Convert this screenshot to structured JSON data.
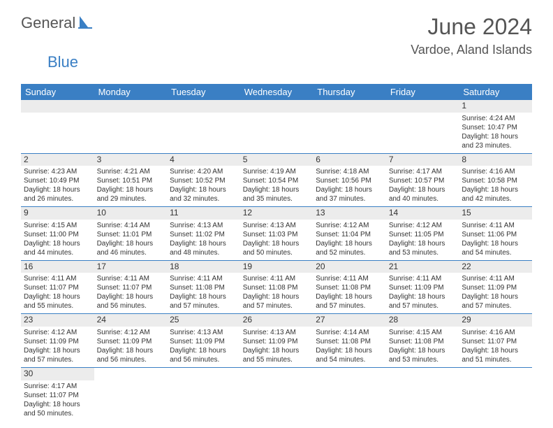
{
  "logo": {
    "part1": "General",
    "part2": "Blue"
  },
  "title": "June 2024",
  "location": "Vardoe, Aland Islands",
  "colors": {
    "accent": "#3a7fc4",
    "header_text": "#ffffff",
    "stripe": "#ececec"
  },
  "weekdays": [
    "Sunday",
    "Monday",
    "Tuesday",
    "Wednesday",
    "Thursday",
    "Friday",
    "Saturday"
  ],
  "days": {
    "1": {
      "sunrise": "4:24 AM",
      "sunset": "10:47 PM",
      "daylight": "18 hours and 23 minutes."
    },
    "2": {
      "sunrise": "4:23 AM",
      "sunset": "10:49 PM",
      "daylight": "18 hours and 26 minutes."
    },
    "3": {
      "sunrise": "4:21 AM",
      "sunset": "10:51 PM",
      "daylight": "18 hours and 29 minutes."
    },
    "4": {
      "sunrise": "4:20 AM",
      "sunset": "10:52 PM",
      "daylight": "18 hours and 32 minutes."
    },
    "5": {
      "sunrise": "4:19 AM",
      "sunset": "10:54 PM",
      "daylight": "18 hours and 35 minutes."
    },
    "6": {
      "sunrise": "4:18 AM",
      "sunset": "10:56 PM",
      "daylight": "18 hours and 37 minutes."
    },
    "7": {
      "sunrise": "4:17 AM",
      "sunset": "10:57 PM",
      "daylight": "18 hours and 40 minutes."
    },
    "8": {
      "sunrise": "4:16 AM",
      "sunset": "10:58 PM",
      "daylight": "18 hours and 42 minutes."
    },
    "9": {
      "sunrise": "4:15 AM",
      "sunset": "11:00 PM",
      "daylight": "18 hours and 44 minutes."
    },
    "10": {
      "sunrise": "4:14 AM",
      "sunset": "11:01 PM",
      "daylight": "18 hours and 46 minutes."
    },
    "11": {
      "sunrise": "4:13 AM",
      "sunset": "11:02 PM",
      "daylight": "18 hours and 48 minutes."
    },
    "12": {
      "sunrise": "4:13 AM",
      "sunset": "11:03 PM",
      "daylight": "18 hours and 50 minutes."
    },
    "13": {
      "sunrise": "4:12 AM",
      "sunset": "11:04 PM",
      "daylight": "18 hours and 52 minutes."
    },
    "14": {
      "sunrise": "4:12 AM",
      "sunset": "11:05 PM",
      "daylight": "18 hours and 53 minutes."
    },
    "15": {
      "sunrise": "4:11 AM",
      "sunset": "11:06 PM",
      "daylight": "18 hours and 54 minutes."
    },
    "16": {
      "sunrise": "4:11 AM",
      "sunset": "11:07 PM",
      "daylight": "18 hours and 55 minutes."
    },
    "17": {
      "sunrise": "4:11 AM",
      "sunset": "11:07 PM",
      "daylight": "18 hours and 56 minutes."
    },
    "18": {
      "sunrise": "4:11 AM",
      "sunset": "11:08 PM",
      "daylight": "18 hours and 57 minutes."
    },
    "19": {
      "sunrise": "4:11 AM",
      "sunset": "11:08 PM",
      "daylight": "18 hours and 57 minutes."
    },
    "20": {
      "sunrise": "4:11 AM",
      "sunset": "11:08 PM",
      "daylight": "18 hours and 57 minutes."
    },
    "21": {
      "sunrise": "4:11 AM",
      "sunset": "11:09 PM",
      "daylight": "18 hours and 57 minutes."
    },
    "22": {
      "sunrise": "4:11 AM",
      "sunset": "11:09 PM",
      "daylight": "18 hours and 57 minutes."
    },
    "23": {
      "sunrise": "4:12 AM",
      "sunset": "11:09 PM",
      "daylight": "18 hours and 57 minutes."
    },
    "24": {
      "sunrise": "4:12 AM",
      "sunset": "11:09 PM",
      "daylight": "18 hours and 56 minutes."
    },
    "25": {
      "sunrise": "4:13 AM",
      "sunset": "11:09 PM",
      "daylight": "18 hours and 56 minutes."
    },
    "26": {
      "sunrise": "4:13 AM",
      "sunset": "11:09 PM",
      "daylight": "18 hours and 55 minutes."
    },
    "27": {
      "sunrise": "4:14 AM",
      "sunset": "11:08 PM",
      "daylight": "18 hours and 54 minutes."
    },
    "28": {
      "sunrise": "4:15 AM",
      "sunset": "11:08 PM",
      "daylight": "18 hours and 53 minutes."
    },
    "29": {
      "sunrise": "4:16 AM",
      "sunset": "11:07 PM",
      "daylight": "18 hours and 51 minutes."
    },
    "30": {
      "sunrise": "4:17 AM",
      "sunset": "11:07 PM",
      "daylight": "18 hours and 50 minutes."
    }
  },
  "labels": {
    "sunrise": "Sunrise: ",
    "sunset": "Sunset: ",
    "daylight": "Daylight: "
  },
  "layout": {
    "first_weekday_index": 6,
    "num_days": 30,
    "cell_font_size": 10,
    "header_font_size": 13,
    "title_font_size": 32,
    "location_font_size": 18
  }
}
